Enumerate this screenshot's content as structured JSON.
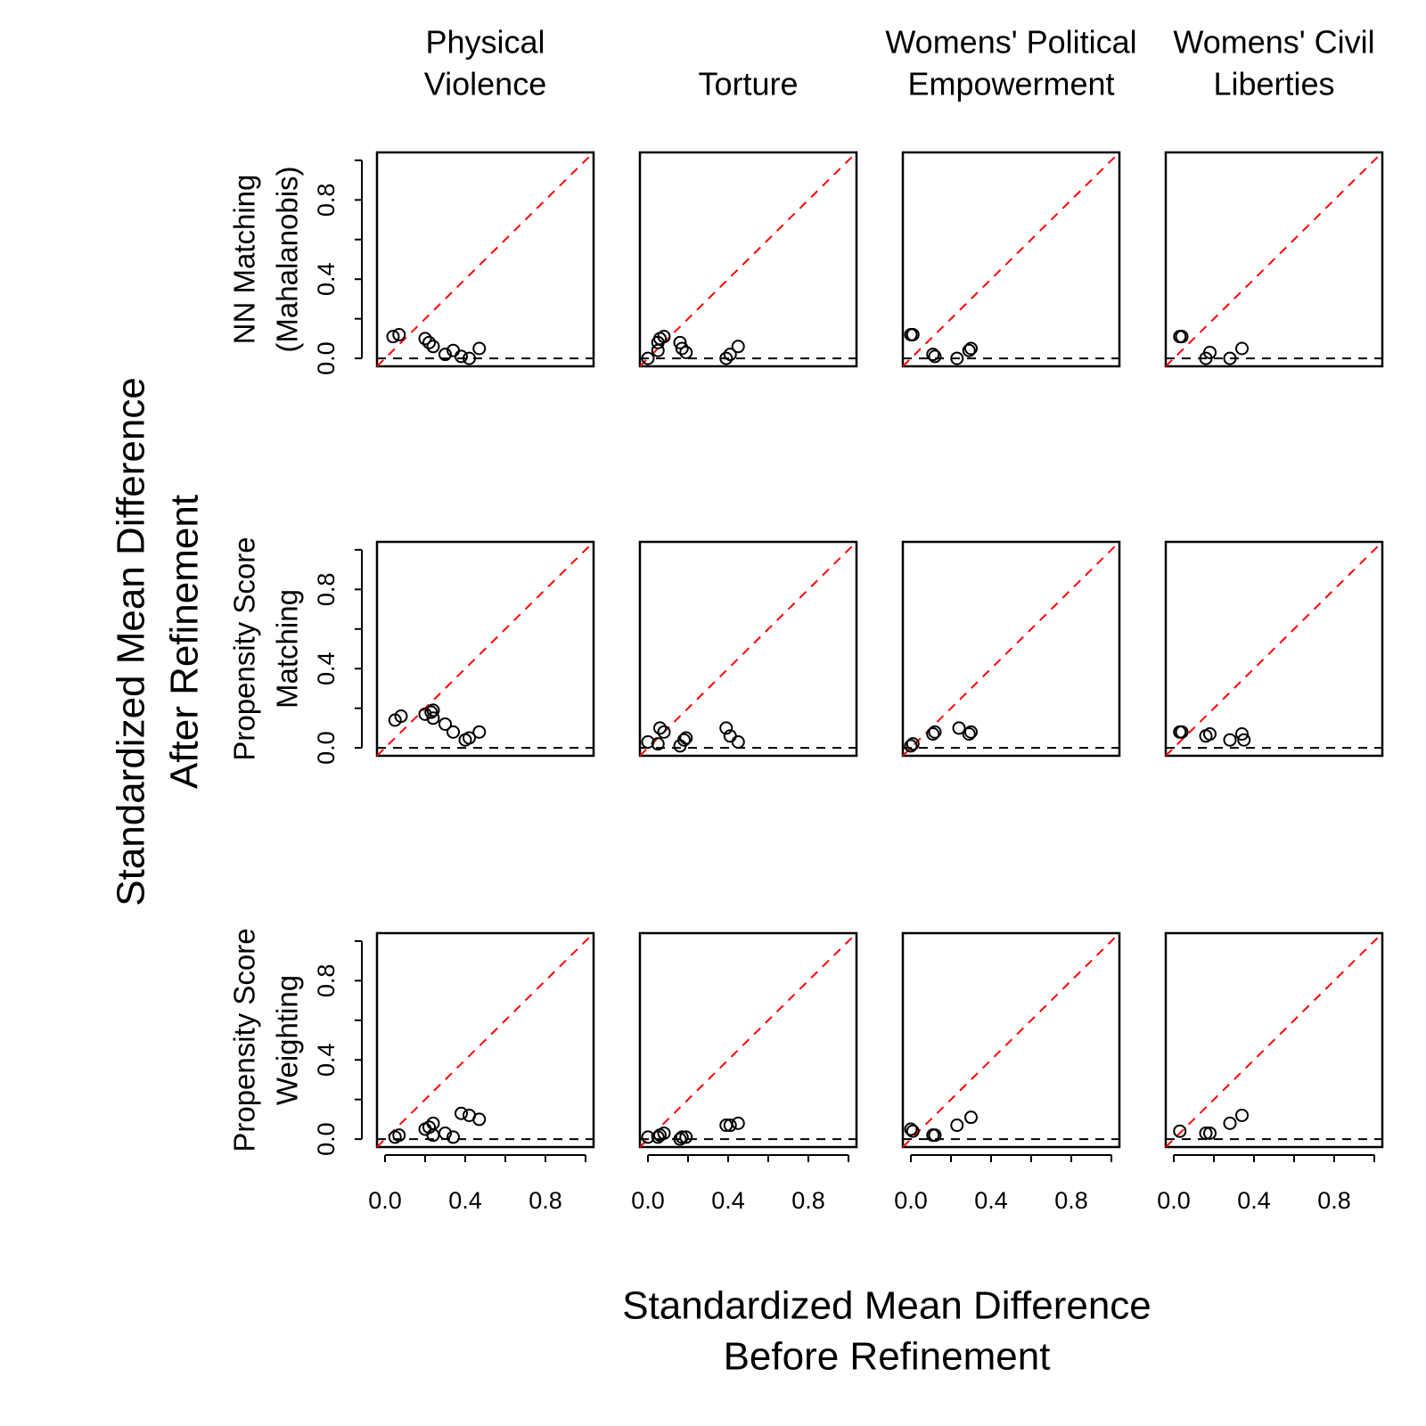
{
  "figure": {
    "column_titles": [
      [
        "Physical",
        "Violence"
      ],
      [
        "Torture"
      ],
      [
        "Womens' Political",
        "Empowerment"
      ],
      [
        "Womens' Civil",
        "Liberties"
      ]
    ],
    "row_labels": [
      [
        "NN Matching",
        "(Mahalanobis)"
      ],
      [
        "Propensity Score",
        "Matching"
      ],
      [
        "Propensity Score",
        "Weighting"
      ]
    ],
    "xlabel": [
      "Standardized Mean Difference",
      "Before Refinement"
    ],
    "ylabel": [
      "Standardized Mean Difference",
      "After Refinement"
    ]
  },
  "chart_data": [
    {
      "type": "scatter",
      "color": "#000000",
      "diagonal_color": "#ff0000",
      "hline": 0,
      "xlim": [
        -0.04,
        1.04
      ],
      "ylim": [
        -0.04,
        1.04
      ],
      "yticks": [
        {
          "value": 0,
          "label": "0.0"
        },
        0.4,
        0.8
      ],
      "yminor_ticks": [
        0.2,
        0.6,
        1.0
      ],
      "x": [
        0.04,
        0.07,
        0.2,
        0.22,
        0.24,
        0.3,
        0.34,
        0.38,
        0.42,
        0.47
      ],
      "y": [
        0.11,
        0.12,
        0.1,
        0.08,
        0.06,
        0.02,
        0.04,
        0.01,
        0.0,
        0.05
      ]
    },
    {
      "type": "scatter",
      "color": "#000000",
      "diagonal_color": "#ff0000",
      "hline": 0,
      "xlim": [
        -0.04,
        1.04
      ],
      "ylim": [
        -0.04,
        1.04
      ],
      "x": [
        0.0,
        0.05,
        0.05,
        0.06,
        0.08,
        0.16,
        0.17,
        0.19,
        0.39,
        0.41,
        0.45
      ],
      "y": [
        0.0,
        0.04,
        0.08,
        0.1,
        0.11,
        0.08,
        0.05,
        0.03,
        0.0,
        0.02,
        0.06
      ]
    },
    {
      "type": "scatter",
      "color": "#000000",
      "diagonal_color": "#ff0000",
      "hline": 0,
      "xlim": [
        -0.04,
        1.04
      ],
      "ylim": [
        -0.04,
        1.04
      ],
      "x": [
        0.0,
        0.01,
        0.11,
        0.12,
        0.23,
        0.29,
        0.3
      ],
      "y": [
        0.12,
        0.12,
        0.02,
        0.01,
        0.0,
        0.04,
        0.05
      ]
    },
    {
      "type": "scatter",
      "color": "#000000",
      "diagonal_color": "#ff0000",
      "hline": 0,
      "xlim": [
        -0.04,
        1.04
      ],
      "ylim": [
        -0.04,
        1.04
      ],
      "x": [
        0.03,
        0.04,
        0.16,
        0.18,
        0.28,
        0.34
      ],
      "y": [
        0.11,
        0.11,
        0.0,
        0.03,
        0.0,
        0.05
      ]
    },
    {
      "type": "scatter",
      "color": "#000000",
      "diagonal_color": "#ff0000",
      "hline": 0,
      "xlim": [
        -0.04,
        1.04
      ],
      "ylim": [
        -0.04,
        1.04
      ],
      "yticks": [
        {
          "value": 0,
          "label": "0.0"
        },
        0.4,
        0.8
      ],
      "yminor_ticks": [
        0.2,
        0.6,
        1.0
      ],
      "x": [
        0.05,
        0.08,
        0.2,
        0.23,
        0.24,
        0.24,
        0.3,
        0.34,
        0.4,
        0.42,
        0.47
      ],
      "y": [
        0.14,
        0.16,
        0.17,
        0.18,
        0.15,
        0.19,
        0.12,
        0.08,
        0.04,
        0.05,
        0.08
      ]
    },
    {
      "type": "scatter",
      "color": "#000000",
      "diagonal_color": "#ff0000",
      "hline": 0,
      "xlim": [
        -0.04,
        1.04
      ],
      "ylim": [
        -0.04,
        1.04
      ],
      "x": [
        0.0,
        0.05,
        0.06,
        0.08,
        0.16,
        0.18,
        0.19,
        0.39,
        0.41,
        0.45
      ],
      "y": [
        0.03,
        0.02,
        0.1,
        0.08,
        0.01,
        0.04,
        0.05,
        0.1,
        0.06,
        0.03
      ]
    },
    {
      "type": "scatter",
      "color": "#000000",
      "diagonal_color": "#ff0000",
      "hline": 0,
      "xlim": [
        -0.04,
        1.04
      ],
      "ylim": [
        -0.04,
        1.04
      ],
      "x": [
        0.0,
        0.01,
        0.11,
        0.12,
        0.24,
        0.29,
        0.3
      ],
      "y": [
        0.01,
        0.02,
        0.07,
        0.08,
        0.1,
        0.07,
        0.08
      ]
    },
    {
      "type": "scatter",
      "color": "#000000",
      "diagonal_color": "#ff0000",
      "hline": 0,
      "xlim": [
        -0.04,
        1.04
      ],
      "ylim": [
        -0.04,
        1.04
      ],
      "x": [
        0.03,
        0.04,
        0.16,
        0.18,
        0.28,
        0.34,
        0.35
      ],
      "y": [
        0.08,
        0.08,
        0.06,
        0.07,
        0.04,
        0.07,
        0.04
      ]
    },
    {
      "type": "scatter",
      "color": "#000000",
      "diagonal_color": "#ff0000",
      "hline": 0,
      "xlim": [
        -0.04,
        1.04
      ],
      "ylim": [
        -0.04,
        1.04
      ],
      "xticks": [
        {
          "value": 0,
          "label": "0.0"
        },
        0.4,
        0.8
      ],
      "xminor_ticks": [
        0.2,
        0.6,
        1.0
      ],
      "yticks": [
        {
          "value": 0,
          "label": "0.0"
        },
        0.4,
        0.8
      ],
      "yminor_ticks": [
        0.2,
        0.6,
        1.0
      ],
      "x": [
        0.05,
        0.07,
        0.2,
        0.22,
        0.24,
        0.24,
        0.3,
        0.34,
        0.38,
        0.42,
        0.47
      ],
      "y": [
        0.01,
        0.02,
        0.05,
        0.06,
        0.02,
        0.08,
        0.03,
        0.01,
        0.13,
        0.12,
        0.1
      ]
    },
    {
      "type": "scatter",
      "color": "#000000",
      "diagonal_color": "#ff0000",
      "hline": 0,
      "xlim": [
        -0.04,
        1.04
      ],
      "ylim": [
        -0.04,
        1.04
      ],
      "xticks": [
        {
          "value": 0,
          "label": "0.0"
        },
        0.4,
        0.8
      ],
      "xminor_ticks": [
        0.2,
        0.6,
        1.0
      ],
      "x": [
        0.0,
        0.05,
        0.06,
        0.08,
        0.16,
        0.17,
        0.19,
        0.39,
        0.41,
        0.45
      ],
      "y": [
        0.01,
        0.01,
        0.02,
        0.03,
        0.0,
        0.01,
        0.01,
        0.07,
        0.07,
        0.08
      ]
    },
    {
      "type": "scatter",
      "color": "#000000",
      "diagonal_color": "#ff0000",
      "hline": 0,
      "xlim": [
        -0.04,
        1.04
      ],
      "ylim": [
        -0.04,
        1.04
      ],
      "xticks": [
        {
          "value": 0,
          "label": "0.0"
        },
        0.4,
        0.8
      ],
      "xminor_ticks": [
        0.2,
        0.6,
        1.0
      ],
      "x": [
        0.0,
        0.01,
        0.11,
        0.12,
        0.23,
        0.3
      ],
      "y": [
        0.05,
        0.04,
        0.02,
        0.02,
        0.07,
        0.11
      ]
    },
    {
      "type": "scatter",
      "color": "#000000",
      "diagonal_color": "#ff0000",
      "hline": 0,
      "xlim": [
        -0.04,
        1.04
      ],
      "ylim": [
        -0.04,
        1.04
      ],
      "xticks": [
        {
          "value": 0,
          "label": "0.0"
        },
        0.4,
        0.8
      ],
      "xminor_ticks": [
        0.2,
        0.6,
        1.0
      ],
      "x": [
        0.03,
        0.16,
        0.18,
        0.28,
        0.34
      ],
      "y": [
        0.04,
        0.03,
        0.03,
        0.08,
        0.12
      ]
    }
  ]
}
